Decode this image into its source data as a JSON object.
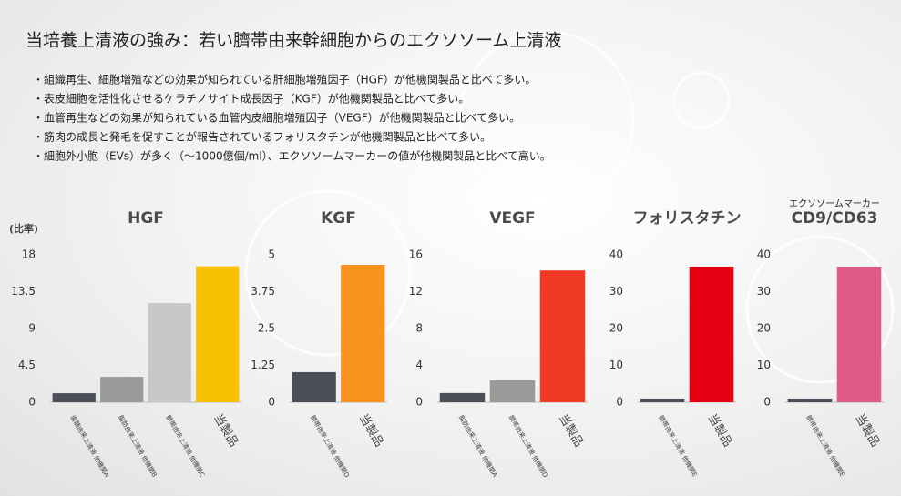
{
  "header": {
    "title": "当培養上清液の強み：若い臍帯由来幹細胞からのエクソソーム上清液"
  },
  "bullets": [
    "・組織再生、細胞増殖などの効果が知られている肝細胞増殖因子（HGF）が他機関製品と比べて多い。",
    "・表皮細胞を活性化させるケラチノサイト成長因子（KGF）が他機関製品と比べて多い。",
    "・血管再生などの効果が知られている血管内皮細胞増殖因子（VEGF）が他機関製品と比べて多い。",
    "・筋肉の成長と発毛を促すことが報告されているフォリスタチンが他機関製品と比べて多い。",
    "・細胞外小胞（EVs）が多く（～1000億個/ml）、エクソソームマーカーの値が他機関製品と比べて高い。"
  ],
  "chart_data": [
    {
      "type": "bar",
      "title": "HGF",
      "y_label": "(比率)",
      "categories": [
        "歯髄由来上清液 他機関A",
        "脂肪由来上清液 他機関B",
        "臍帯由来上清液 他機関C",
        "当製品"
      ],
      "values": [
        1.1,
        3.1,
        12.1,
        16.6
      ],
      "colors": [
        "#4a4f57",
        "#9a9a9a",
        "#c8c8c8",
        "#f8c200"
      ],
      "ylim": [
        0,
        18
      ],
      "yticks": [
        0,
        4.5,
        9,
        13.5,
        18
      ]
    },
    {
      "type": "bar",
      "title": "KGF",
      "categories": [
        "臍帯由来上清液 他機関D",
        "当製品"
      ],
      "values": [
        1.02,
        4.66
      ],
      "colors": [
        "#4a4f57",
        "#f7931e"
      ],
      "ylim": [
        0,
        5
      ],
      "yticks": [
        0,
        1.25,
        2.5,
        3.75,
        5
      ]
    },
    {
      "type": "bar",
      "title": "VEGF",
      "categories": [
        "脂肪由来上清液 他機関A",
        "臍帯由来上清液 他機関D",
        "当製品"
      ],
      "values": [
        1.0,
        2.4,
        14.3
      ],
      "colors": [
        "#4a4f57",
        "#9a9a9a",
        "#f03a26"
      ],
      "ylim": [
        0,
        16
      ],
      "yticks": [
        0,
        4,
        8,
        12,
        16
      ]
    },
    {
      "type": "bar",
      "title": "フォリスタチン",
      "categories": [
        "臍帯由来上清液 他機関E",
        "当製品"
      ],
      "values": [
        1.0,
        36.8
      ],
      "colors": [
        "#4a4f57",
        "#e50012"
      ],
      "ylim": [
        0,
        40
      ],
      "yticks": [
        0,
        10,
        20,
        30,
        40
      ]
    },
    {
      "type": "bar",
      "subtitle": "エクソソームマーカー",
      "title": "CD9/CD63",
      "categories": [
        "臍帯由来上清液 他機関E",
        "当製品"
      ],
      "values": [
        1.0,
        36.8
      ],
      "colors": [
        "#4a4f57",
        "#e05a8a"
      ],
      "ylim": [
        0,
        40
      ],
      "yticks": [
        0,
        10,
        20,
        30,
        40
      ]
    }
  ]
}
